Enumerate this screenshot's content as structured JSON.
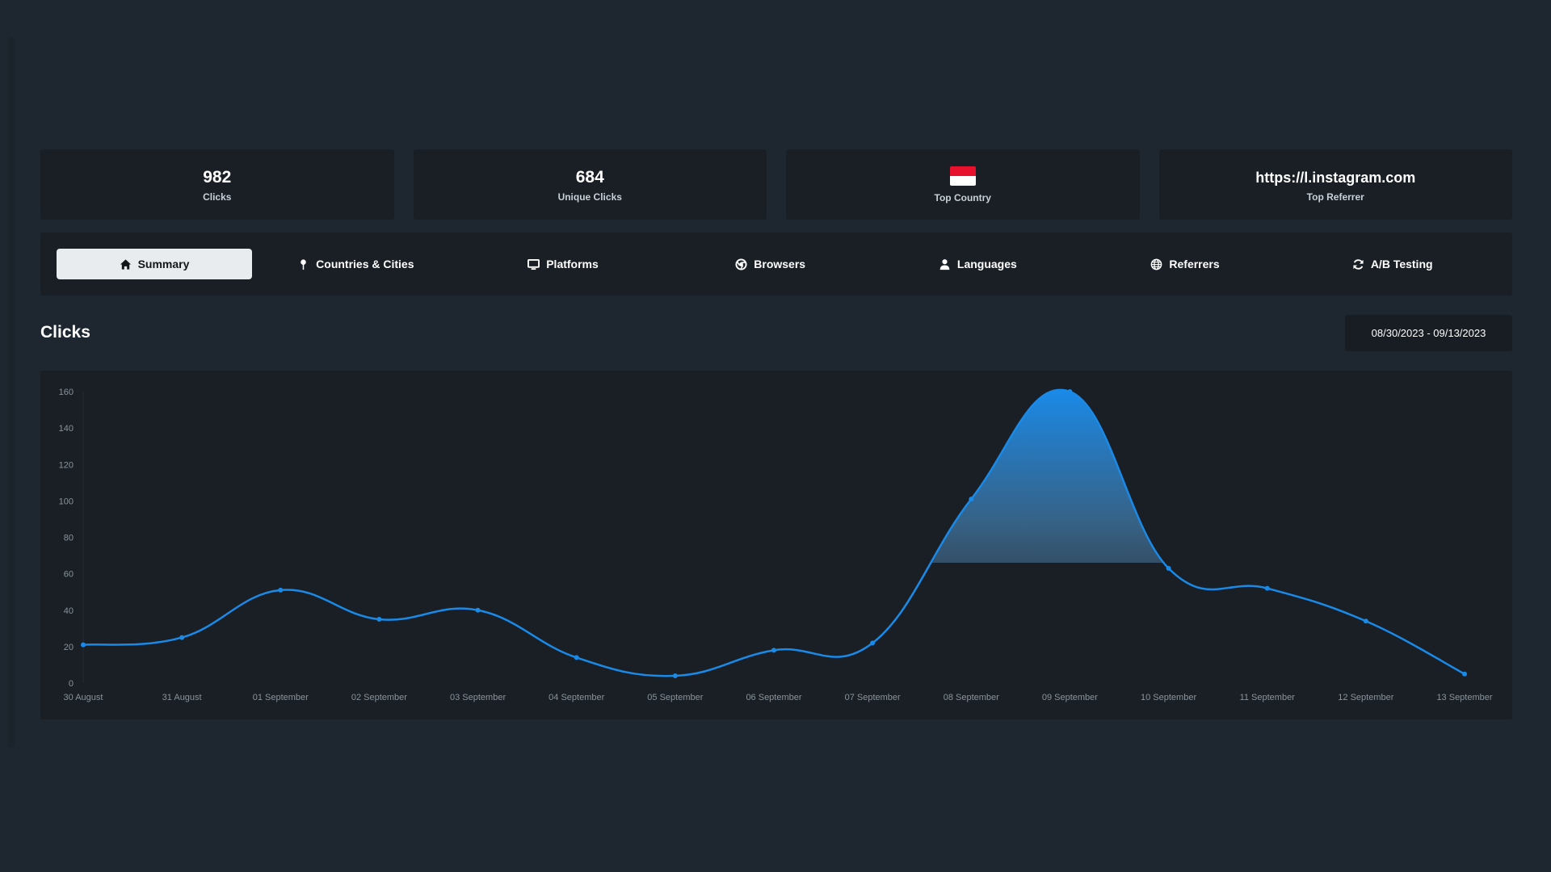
{
  "stats": {
    "clicks": {
      "value": "982",
      "label": "Clicks"
    },
    "unique_clicks": {
      "value": "684",
      "label": "Unique Clicks"
    },
    "top_country": {
      "label": "Top Country",
      "flag_icon": "flag-red-white-icon"
    },
    "top_referrer": {
      "value": "https://l.instagram.com",
      "label": "Top Referrer"
    }
  },
  "tabs": [
    {
      "label": "Summary",
      "icon": "home-icon",
      "active": true
    },
    {
      "label": "Countries & Cities",
      "icon": "map-pin-icon",
      "active": false
    },
    {
      "label": "Platforms",
      "icon": "monitor-icon",
      "active": false
    },
    {
      "label": "Browsers",
      "icon": "chrome-icon",
      "active": false
    },
    {
      "label": "Languages",
      "icon": "user-icon",
      "active": false
    },
    {
      "label": "Referrers",
      "icon": "globe-icon",
      "active": false
    },
    {
      "label": "A/B Testing",
      "icon": "refresh-icon",
      "active": false
    }
  ],
  "section": {
    "title": "Clicks"
  },
  "date_range": {
    "value": "08/30/2023 - 09/13/2023"
  },
  "colors": {
    "accent": "#1a8ae8",
    "background": "#1e2730",
    "panel": "#191f25"
  },
  "chart_data": {
    "type": "area",
    "title": "Clicks",
    "categories": [
      "30 August",
      "31 August",
      "01 September",
      "02 September",
      "03 September",
      "04 September",
      "05 September",
      "06 September",
      "07 September",
      "08 September",
      "09 September",
      "10 September",
      "11 September",
      "12 September",
      "13 September"
    ],
    "series": [
      {
        "name": "Clicks",
        "values": [
          21,
          25,
          51,
          35,
          40,
          14,
          4,
          18,
          22,
          101,
          160,
          63,
          52,
          34,
          5
        ]
      }
    ],
    "ylim": [
      0,
      160
    ],
    "yticks": [
      0,
      20,
      40,
      60,
      80,
      100,
      120,
      140,
      160
    ],
    "xlabel": "",
    "ylabel": "",
    "grid": false
  }
}
